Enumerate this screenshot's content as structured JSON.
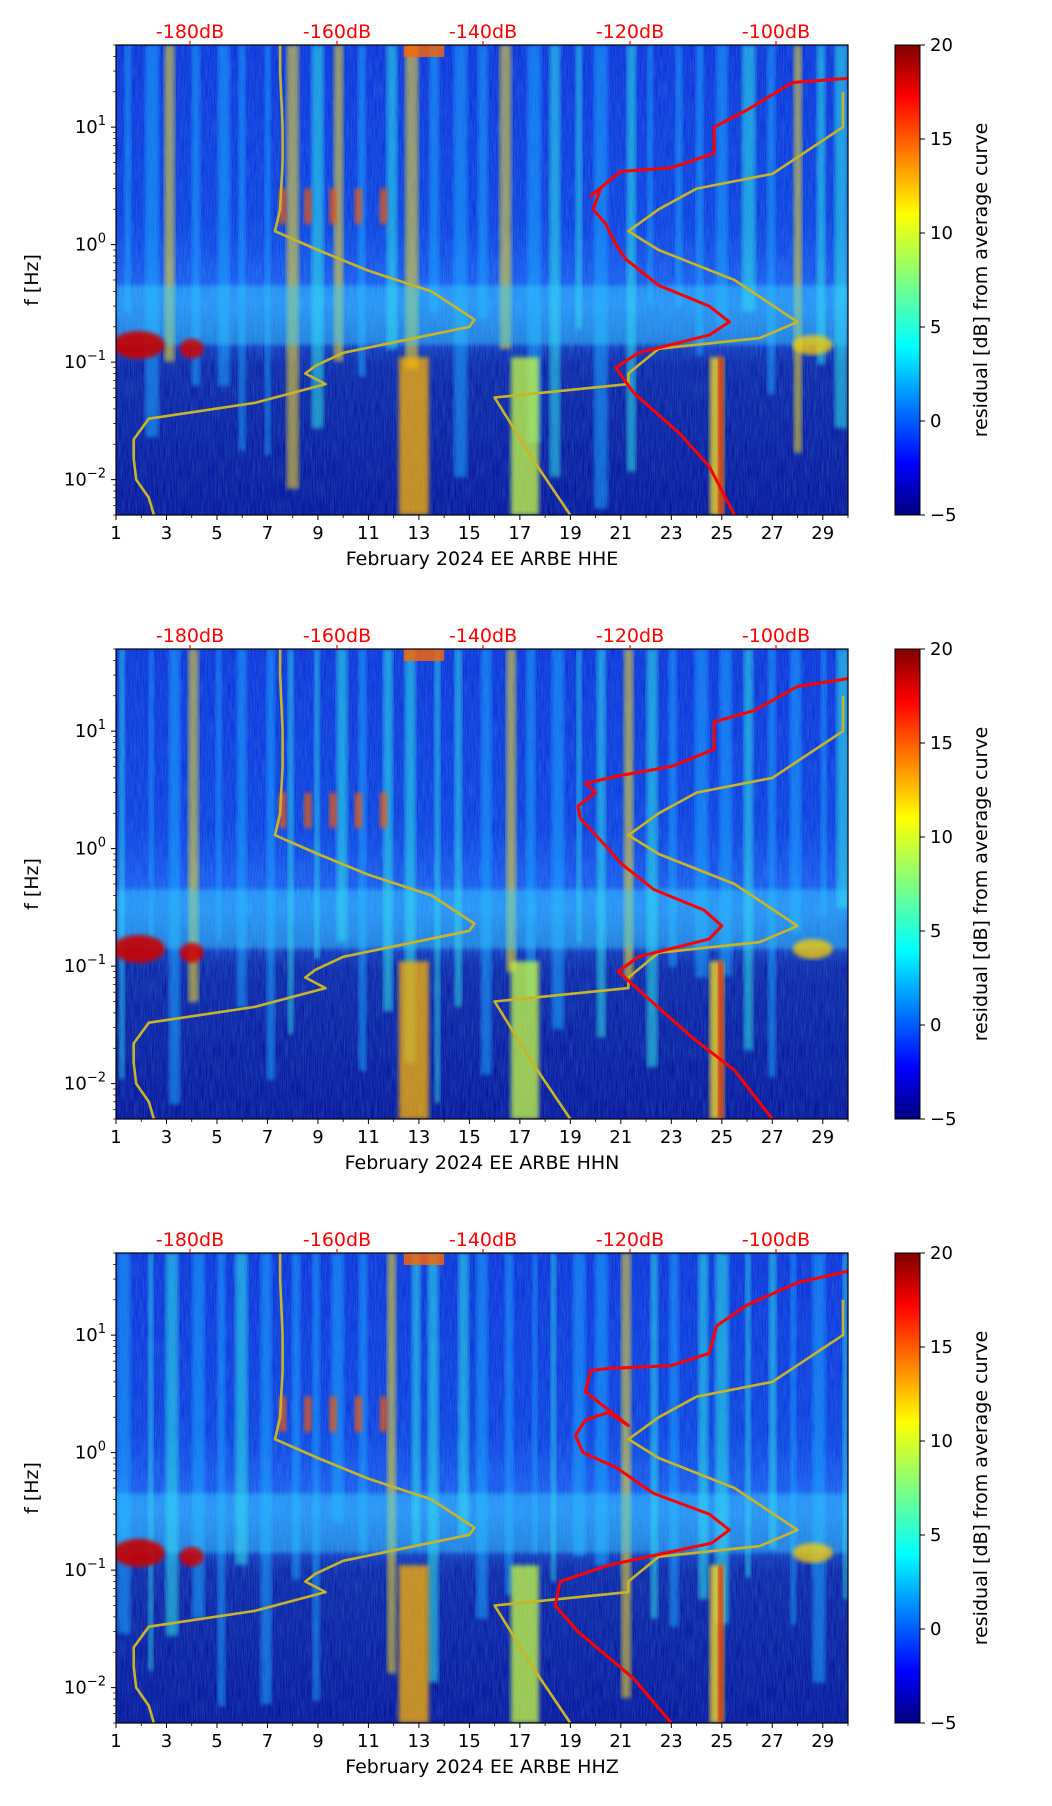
{
  "chart_data": [
    {
      "type": "heatmap",
      "title": "",
      "xlabel": "February 2024 EE ARBE  HHE",
      "ylabel": "f [Hz]",
      "x_ticks": [
        "1",
        "3",
        "5",
        "7",
        "9",
        "11",
        "13",
        "15",
        "17",
        "19",
        "21",
        "23",
        "25",
        "27",
        "29"
      ],
      "x_range": [
        1,
        30
      ],
      "y_range": [
        0.005,
        50
      ],
      "y_scale": "log",
      "y_ticks": [
        {
          "base": "10",
          "exp": "1",
          "value": 10
        },
        {
          "base": "10",
          "exp": "0",
          "value": 1
        },
        {
          "base": "10",
          "exp": "−1",
          "value": 0.1
        },
        {
          "base": "10",
          "exp": "−2",
          "value": 0.01
        }
      ],
      "top_axis_labels": [
        "-180dB",
        "-160dB",
        "-140dB",
        "-120dB",
        "-100dB"
      ],
      "top_axis_color": "#ff0000",
      "colorbar": {
        "label": "residual [dB] from average curve",
        "ticks": [
          "20",
          "15",
          "10",
          "5",
          "0",
          "−5"
        ],
        "range": [
          -5,
          20
        ],
        "colormap": "jet"
      },
      "series": [
        {
          "name": "yellow reference curve",
          "color": "#c8b428",
          "points": [
            [
              2.5,
              0.005
            ],
            [
              2.3,
              0.007
            ],
            [
              1.8,
              0.01
            ],
            [
              1.7,
              0.015
            ],
            [
              1.7,
              0.022
            ],
            [
              2.3,
              0.033
            ],
            [
              6.5,
              0.045
            ],
            [
              9.3,
              0.065
            ],
            [
              8.5,
              0.08
            ],
            [
              8.9,
              0.093
            ],
            [
              10,
              0.12
            ],
            [
              15,
              0.2
            ],
            [
              15.2,
              0.23
            ],
            [
              13.5,
              0.4
            ],
            [
              11,
              0.6
            ],
            [
              9,
              0.9
            ],
            [
              7.3,
              1.3
            ],
            [
              7.5,
              2
            ],
            [
              7.6,
              5
            ],
            [
              7.6,
              10
            ],
            [
              7.5,
              30
            ],
            [
              7.5,
              50
            ]
          ]
        },
        {
          "name": "yellow reference curve (right)",
          "color": "#c8b428",
          "points": [
            [
              19,
              0.005
            ],
            [
              17.5,
              0.015
            ],
            [
              16,
              0.05
            ],
            [
              21.3,
              0.065
            ],
            [
              21.3,
              0.08
            ],
            [
              22.5,
              0.13
            ],
            [
              26.5,
              0.16
            ],
            [
              28,
              0.22
            ],
            [
              25.5,
              0.5
            ],
            [
              22.5,
              0.9
            ],
            [
              21.3,
              1.3
            ],
            [
              22.5,
              2
            ],
            [
              24,
              3
            ],
            [
              27,
              4
            ],
            [
              29.8,
              10
            ],
            [
              29.8,
              20
            ]
          ]
        },
        {
          "name": "red noise curve",
          "color": "#ff0000",
          "points": [
            [
              25.5,
              0.005
            ],
            [
              24.5,
              0.013
            ],
            [
              23.3,
              0.025
            ],
            [
              21.5,
              0.055
            ],
            [
              20.8,
              0.09
            ],
            [
              21.7,
              0.12
            ],
            [
              24.5,
              0.17
            ],
            [
              25.3,
              0.22
            ],
            [
              24.5,
              0.3
            ],
            [
              22.5,
              0.45
            ],
            [
              21.2,
              0.75
            ],
            [
              20.8,
              1.0
            ],
            [
              20.4,
              1.5
            ],
            [
              19.9,
              2
            ],
            [
              20.2,
              3
            ],
            [
              19.8,
              2.6
            ],
            [
              21,
              4.2
            ],
            [
              23,
              4.5
            ],
            [
              24.7,
              6
            ],
            [
              24.7,
              10
            ],
            [
              26,
              14
            ],
            [
              27.8,
              24
            ],
            [
              30,
              26
            ]
          ]
        }
      ]
    },
    {
      "type": "heatmap",
      "title": "",
      "xlabel": "February 2024 EE ARBE  HHN",
      "ylabel": "f [Hz]",
      "x_ticks": [
        "1",
        "3",
        "5",
        "7",
        "9",
        "11",
        "13",
        "15",
        "17",
        "19",
        "21",
        "23",
        "25",
        "27",
        "29"
      ],
      "x_range": [
        1,
        30
      ],
      "y_range": [
        0.005,
        50
      ],
      "y_scale": "log",
      "y_ticks": [
        {
          "base": "10",
          "exp": "1",
          "value": 10
        },
        {
          "base": "10",
          "exp": "0",
          "value": 1
        },
        {
          "base": "10",
          "exp": "−1",
          "value": 0.1
        },
        {
          "base": "10",
          "exp": "−2",
          "value": 0.01
        }
      ],
      "top_axis_labels": [
        "-180dB",
        "-160dB",
        "-140dB",
        "-120dB",
        "-100dB"
      ],
      "top_axis_color": "#ff0000",
      "colorbar": {
        "label": "residual [dB] from average curve",
        "ticks": [
          "20",
          "15",
          "10",
          "5",
          "0",
          "−5"
        ],
        "range": [
          -5,
          20
        ],
        "colormap": "jet"
      },
      "series": [
        {
          "name": "yellow reference curve",
          "color": "#c8b428",
          "points": [
            [
              2.5,
              0.005
            ],
            [
              2.3,
              0.007
            ],
            [
              1.8,
              0.01
            ],
            [
              1.7,
              0.015
            ],
            [
              1.7,
              0.022
            ],
            [
              2.3,
              0.033
            ],
            [
              6.5,
              0.045
            ],
            [
              9.3,
              0.065
            ],
            [
              8.5,
              0.08
            ],
            [
              8.9,
              0.093
            ],
            [
              10,
              0.12
            ],
            [
              15,
              0.2
            ],
            [
              15.2,
              0.23
            ],
            [
              13.5,
              0.4
            ],
            [
              11,
              0.6
            ],
            [
              9,
              0.9
            ],
            [
              7.3,
              1.3
            ],
            [
              7.5,
              2
            ],
            [
              7.6,
              5
            ],
            [
              7.6,
              10
            ],
            [
              7.5,
              30
            ],
            [
              7.5,
              50
            ]
          ]
        },
        {
          "name": "yellow reference curve (right)",
          "color": "#c8b428",
          "points": [
            [
              19,
              0.005
            ],
            [
              17.5,
              0.015
            ],
            [
              16,
              0.05
            ],
            [
              21.3,
              0.065
            ],
            [
              21.3,
              0.08
            ],
            [
              22.5,
              0.13
            ],
            [
              26.5,
              0.16
            ],
            [
              28,
              0.22
            ],
            [
              25.5,
              0.5
            ],
            [
              22.5,
              0.9
            ],
            [
              21.3,
              1.3
            ],
            [
              22.5,
              2
            ],
            [
              24,
              3
            ],
            [
              27,
              4
            ],
            [
              29.8,
              10
            ],
            [
              29.8,
              20
            ]
          ]
        },
        {
          "name": "red noise curve",
          "color": "#ff0000",
          "points": [
            [
              27,
              0.005
            ],
            [
              25.5,
              0.013
            ],
            [
              23.8,
              0.025
            ],
            [
              22,
              0.055
            ],
            [
              20.9,
              0.09
            ],
            [
              21.7,
              0.12
            ],
            [
              24.5,
              0.17
            ],
            [
              25,
              0.22
            ],
            [
              24.3,
              0.3
            ],
            [
              22.3,
              0.45
            ],
            [
              21,
              0.75
            ],
            [
              20.5,
              1.0
            ],
            [
              19.4,
              1.8
            ],
            [
              19.3,
              2.3
            ],
            [
              20,
              3
            ],
            [
              19.6,
              3.6
            ],
            [
              21,
              4.2
            ],
            [
              23,
              5
            ],
            [
              24.7,
              7
            ],
            [
              24.7,
              12
            ],
            [
              26.3,
              15
            ],
            [
              28,
              24
            ],
            [
              30,
              28
            ]
          ]
        }
      ]
    },
    {
      "type": "heatmap",
      "title": "",
      "xlabel": "February 2024 EE ARBE  HHZ",
      "ylabel": "f [Hz]",
      "x_ticks": [
        "1",
        "3",
        "5",
        "7",
        "9",
        "11",
        "13",
        "15",
        "17",
        "19",
        "21",
        "23",
        "25",
        "27",
        "29"
      ],
      "x_range": [
        1,
        30
      ],
      "y_range": [
        0.005,
        50
      ],
      "y_scale": "log",
      "y_ticks": [
        {
          "base": "10",
          "exp": "1",
          "value": 10
        },
        {
          "base": "10",
          "exp": "0",
          "value": 1
        },
        {
          "base": "10",
          "exp": "−1",
          "value": 0.1
        },
        {
          "base": "10",
          "exp": "−2",
          "value": 0.01
        }
      ],
      "top_axis_labels": [
        "-180dB",
        "-160dB",
        "-140dB",
        "-120dB",
        "-100dB"
      ],
      "top_axis_color": "#ff0000",
      "colorbar": {
        "label": "residual [dB] from average curve",
        "ticks": [
          "20",
          "15",
          "10",
          "5",
          "0",
          "−5"
        ],
        "range": [
          -5,
          20
        ],
        "colormap": "jet"
      },
      "series": [
        {
          "name": "yellow reference curve",
          "color": "#c8b428",
          "points": [
            [
              2.5,
              0.005
            ],
            [
              2.3,
              0.007
            ],
            [
              1.8,
              0.01
            ],
            [
              1.7,
              0.015
            ],
            [
              1.7,
              0.022
            ],
            [
              2.3,
              0.033
            ],
            [
              6.5,
              0.045
            ],
            [
              9.3,
              0.065
            ],
            [
              8.5,
              0.08
            ],
            [
              8.9,
              0.093
            ],
            [
              10,
              0.12
            ],
            [
              15,
              0.2
            ],
            [
              15.2,
              0.23
            ],
            [
              13.5,
              0.4
            ],
            [
              11,
              0.6
            ],
            [
              9,
              0.9
            ],
            [
              7.3,
              1.3
            ],
            [
              7.5,
              2
            ],
            [
              7.6,
              5
            ],
            [
              7.6,
              10
            ],
            [
              7.5,
              30
            ],
            [
              7.5,
              50
            ]
          ]
        },
        {
          "name": "yellow reference curve (right)",
          "color": "#c8b428",
          "points": [
            [
              19,
              0.005
            ],
            [
              17.5,
              0.015
            ],
            [
              16,
              0.05
            ],
            [
              21.3,
              0.065
            ],
            [
              21.3,
              0.08
            ],
            [
              22.5,
              0.13
            ],
            [
              26.5,
              0.16
            ],
            [
              28,
              0.22
            ],
            [
              25.5,
              0.5
            ],
            [
              22.5,
              0.9
            ],
            [
              21.3,
              1.3
            ],
            [
              22.5,
              2
            ],
            [
              24,
              3
            ],
            [
              27,
              4
            ],
            [
              29.8,
              10
            ],
            [
              29.8,
              20
            ]
          ]
        },
        {
          "name": "red noise curve",
          "color": "#ff0000",
          "points": [
            [
              23,
              0.005
            ],
            [
              21.5,
              0.012
            ],
            [
              19.3,
              0.03
            ],
            [
              18.4,
              0.05
            ],
            [
              18.6,
              0.08
            ],
            [
              20.5,
              0.11
            ],
            [
              24.6,
              0.17
            ],
            [
              25.3,
              0.22
            ],
            [
              24.5,
              0.3
            ],
            [
              22.3,
              0.45
            ],
            [
              20.8,
              0.75
            ],
            [
              19.5,
              1.0
            ],
            [
              19.2,
              1.4
            ],
            [
              19.6,
              1.9
            ],
            [
              20.5,
              2.2
            ],
            [
              21.3,
              1.7
            ],
            [
              19.6,
              3.3
            ],
            [
              19.8,
              5
            ],
            [
              20.5,
              5.2
            ],
            [
              23,
              5.5
            ],
            [
              24.5,
              7
            ],
            [
              24.8,
              12
            ],
            [
              26,
              18
            ],
            [
              28,
              28
            ],
            [
              30,
              35
            ]
          ]
        }
      ]
    }
  ]
}
